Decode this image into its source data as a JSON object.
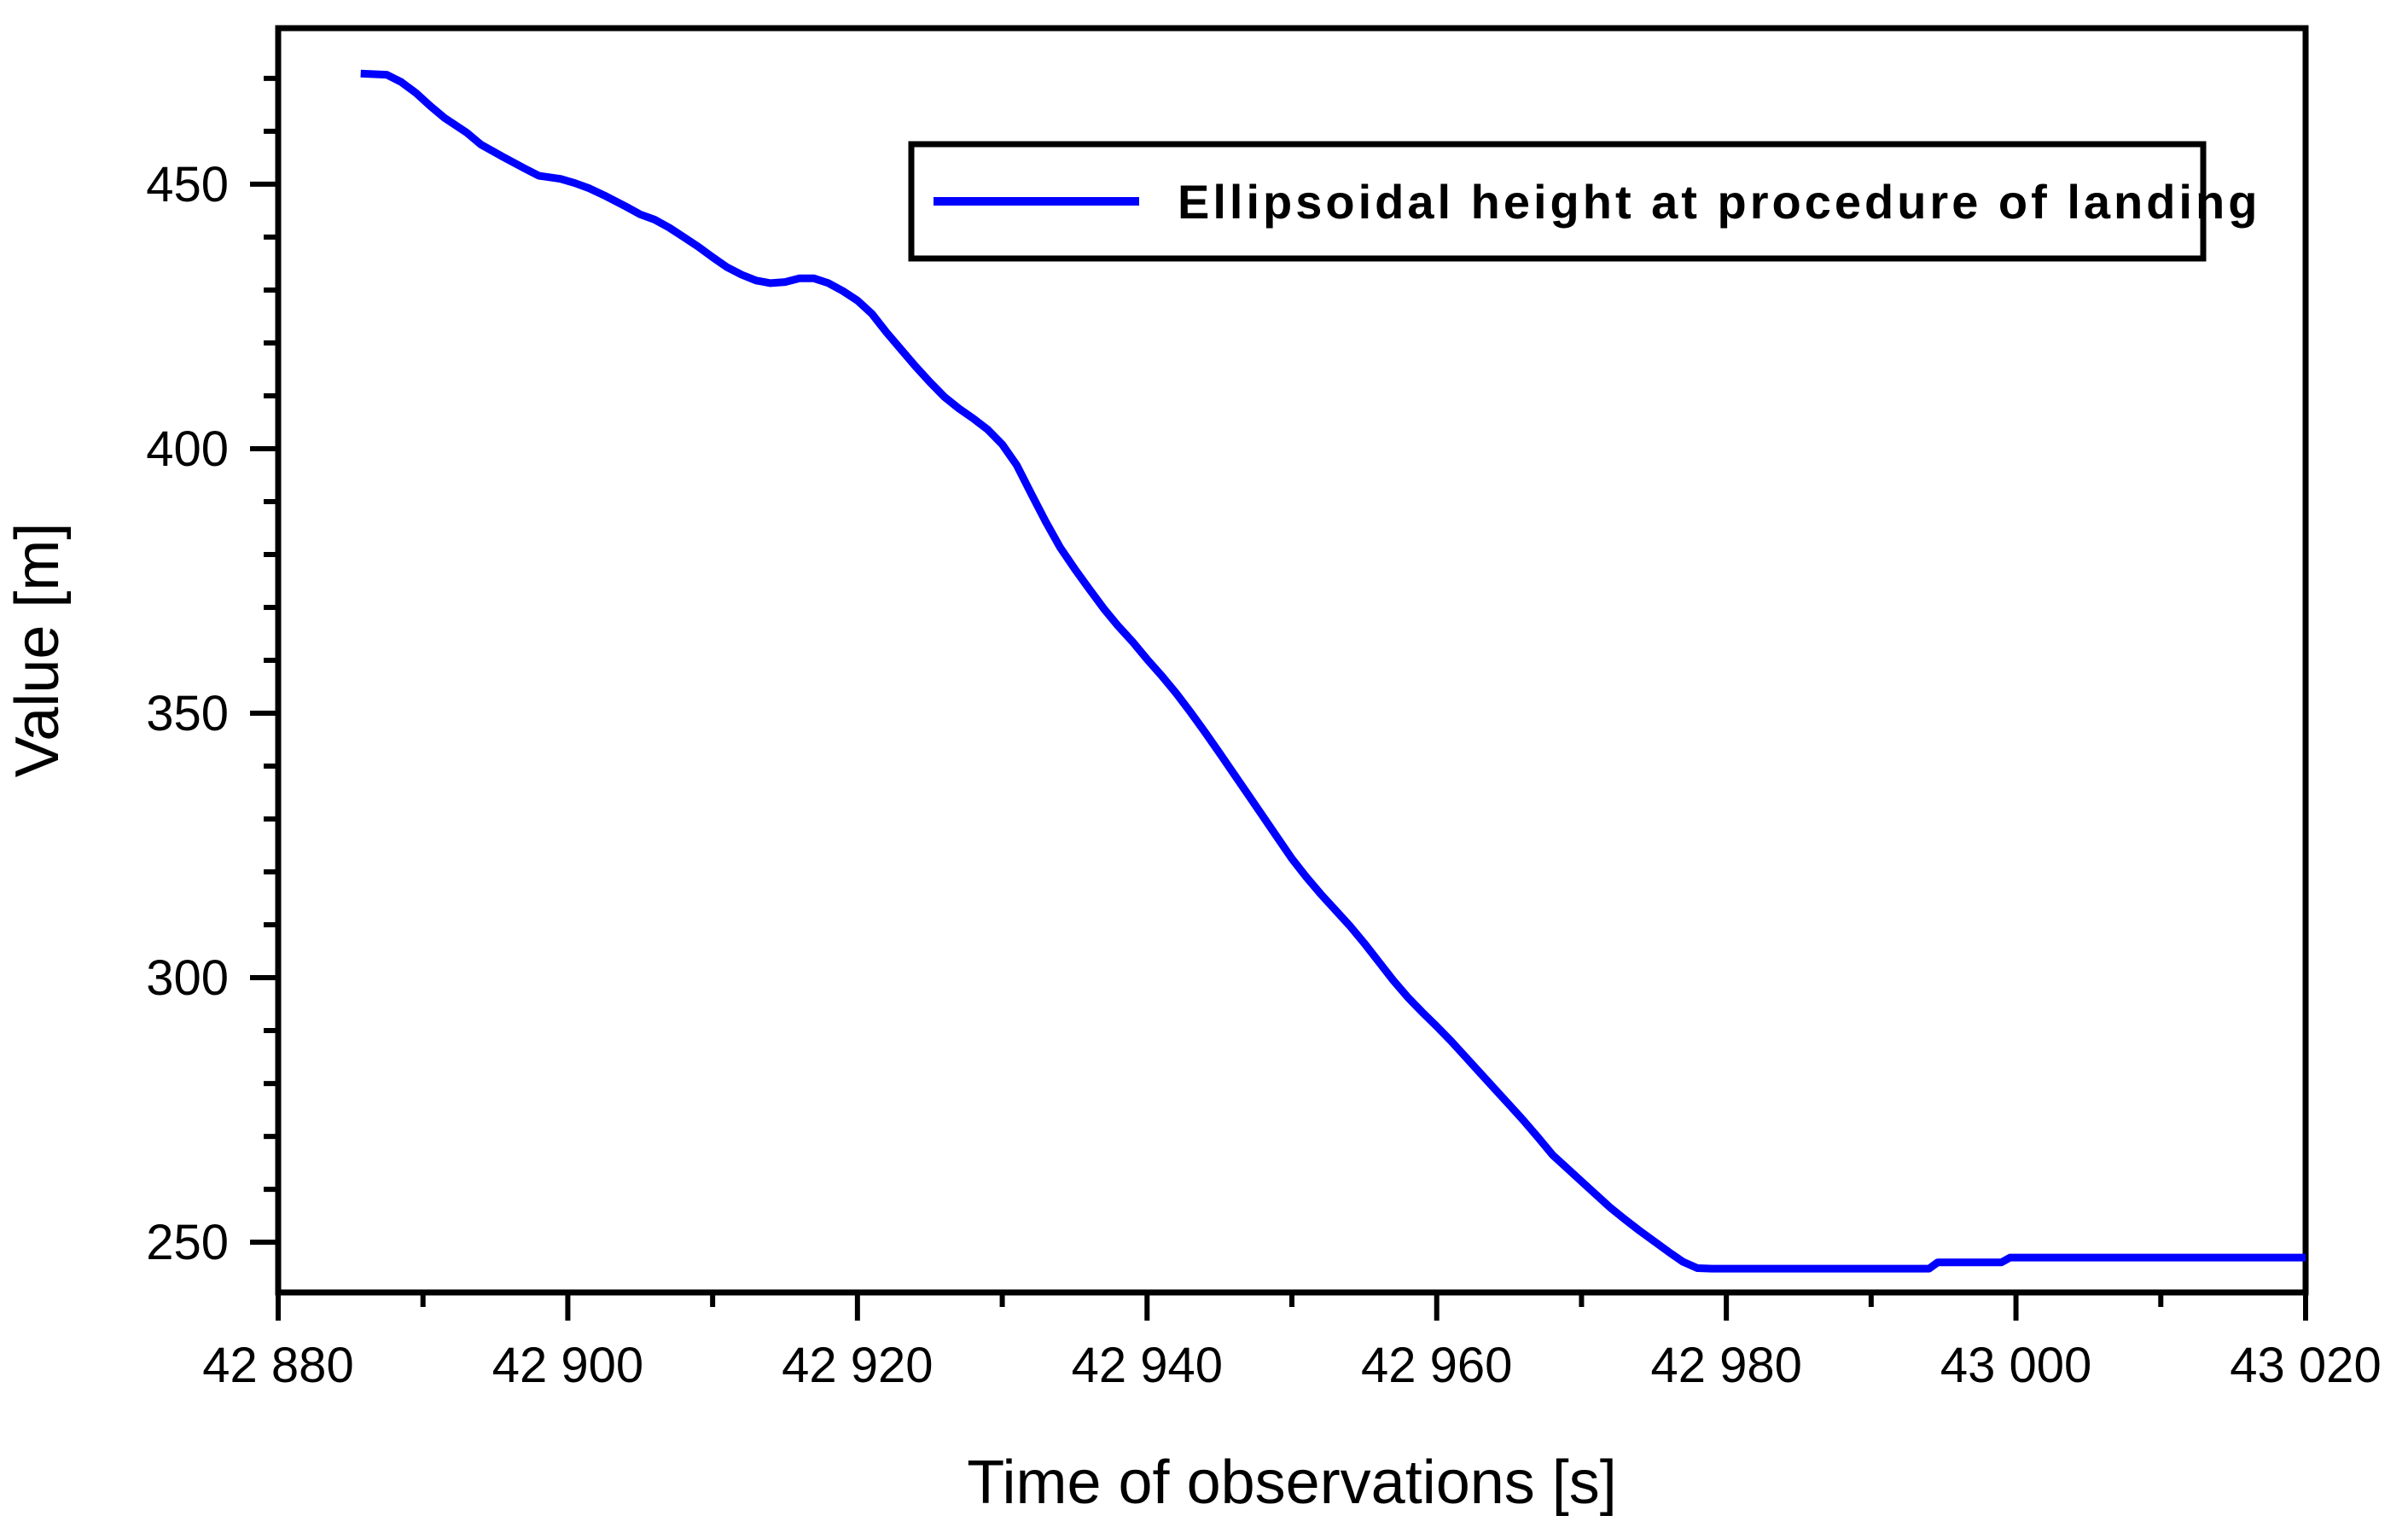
{
  "chart_data": {
    "type": "line",
    "title": "",
    "xlabel": "Time of observations [s]",
    "ylabel": "Value [m]",
    "background": "#ffffff",
    "axis_color": "#000000",
    "line_color": "#0000ff",
    "grid": false,
    "legend_position": "top-center-inside",
    "legend": {
      "label": "Ellipsoidal height at procedure of landing",
      "line_color": "#0000ff"
    },
    "x_axis": {
      "min": 42880,
      "max": 43020,
      "major_tick_values": [
        42880,
        42900,
        42920,
        42940,
        42960,
        42980,
        43000,
        43020
      ],
      "major_tick_labels": [
        "42 880",
        "42 900",
        "42 920",
        "42 940",
        "42 960",
        "42 980",
        "43 000",
        "43 020"
      ],
      "minor_tick_step": 10
    },
    "y_axis": {
      "min": 240.5,
      "max": 479.5,
      "major_tick_values": [
        250,
        300,
        350,
        400,
        450
      ],
      "major_tick_labels": [
        "250",
        "300",
        "350",
        "400",
        "450"
      ],
      "minor_tick_step": 10
    },
    "series": [
      {
        "name": "Ellipsoidal height at procedure of landing",
        "color": "#0000ff",
        "x": [
          42885.7,
          42887.5,
          42888.5,
          42889.5,
          42890.5,
          42891.5,
          42893,
          42894,
          42895.5,
          42897,
          42898,
          42899.5,
          42900.5,
          42901.5,
          42902.5,
          42904,
          42905,
          42906,
          42907,
          42908,
          42909,
          42910,
          42911,
          42912,
          42913,
          42914,
          42915,
          42916,
          42917,
          42918,
          42919,
          42920,
          42921,
          42922,
          42923,
          42924,
          42925,
          42926,
          42927,
          42928,
          42929,
          42930,
          42931,
          42932,
          42933,
          42934,
          42935,
          42936,
          42937,
          42938,
          42939,
          42940,
          42941,
          42942,
          42943,
          42944,
          42945,
          42946,
          42947,
          42948,
          42949,
          42950,
          42951,
          42952,
          42953,
          42954,
          42955,
          42956,
          42957,
          42958,
          42959,
          42960,
          42961,
          42962,
          42963,
          42964,
          42965,
          42966,
          42967,
          42968,
          42969,
          42970,
          42971,
          42972,
          42973,
          42974,
          42975,
          42976,
          42977,
          42978,
          42979,
          42994,
          42994.6,
          42999,
          42999.6,
          43020
        ],
        "y": [
          470.9,
          470.7,
          469.3,
          467.3,
          464.8,
          462.5,
          459.8,
          457.5,
          455.2,
          453.0,
          451.6,
          451.0,
          450.2,
          449.2,
          447.9,
          445.8,
          444.3,
          443.3,
          441.8,
          440.0,
          438.2,
          436.2,
          434.3,
          432.9,
          431.8,
          431.3,
          431.5,
          432.2,
          432.2,
          431.3,
          429.8,
          428.0,
          425.5,
          422.0,
          418.8,
          415.6,
          412.6,
          409.8,
          407.6,
          405.7,
          403.6,
          400.8,
          396.9,
          391.5,
          386.2,
          381.3,
          377.3,
          373.5,
          369.8,
          366.5,
          363.5,
          360.2,
          357.1,
          353.8,
          350.2,
          346.4,
          342.5,
          338.5,
          334.5,
          330.5,
          326.5,
          322.5,
          319.0,
          315.8,
          312.8,
          309.8,
          306.5,
          303.0,
          299.5,
          296.3,
          293.5,
          290.8,
          288.0,
          285.0,
          282.0,
          279.0,
          276.0,
          273.0,
          269.8,
          266.5,
          264.0,
          261.5,
          259.0,
          256.5,
          254.3,
          252.2,
          250.2,
          248.2,
          246.3,
          245.1,
          245.0,
          245.0,
          246.2,
          246.2,
          247.1,
          247.1
        ]
      }
    ]
  }
}
